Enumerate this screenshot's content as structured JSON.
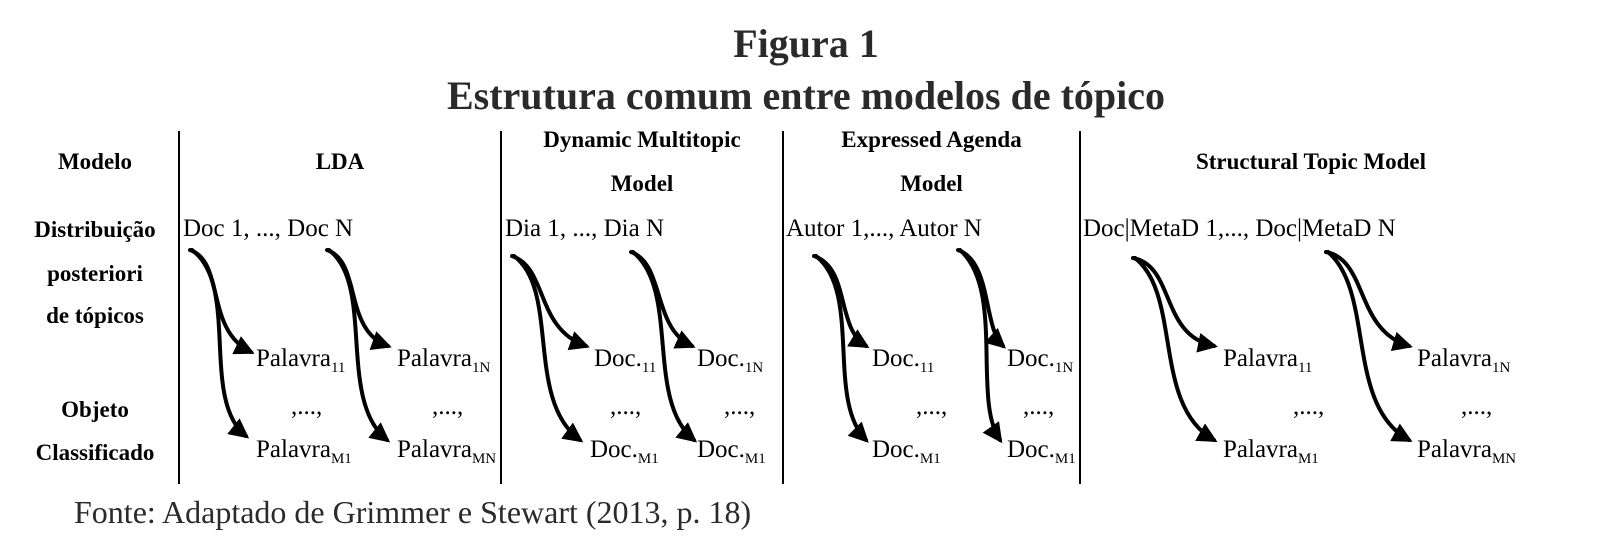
{
  "figure": {
    "number": "Figura 1",
    "title": "Estrutura comum entre modelos de tópico",
    "source": "Fonte: Adaptado de Grimmer e Stewart (2013, p. 18)"
  },
  "row_labels": {
    "model": "Modelo",
    "dist_1": "Distribuição",
    "dist_2": "posteriori",
    "dist_3": "de tópicos",
    "obj_1": "Objeto",
    "obj_2": "Classificado"
  },
  "columns": [
    {
      "model_line1": "LDA",
      "model_line2": "",
      "distribution": "Doc 1, ..., Doc N",
      "left_top": {
        "base": "Palavra",
        "sub": "11"
      },
      "left_dots": ",...,",
      "left_bottom": {
        "base": "Palavra",
        "sub": "M1"
      },
      "right_top": {
        "base": "Palavra",
        "sub": "1N"
      },
      "right_dots": ",...,",
      "right_bottom": {
        "base": "Palavra",
        "sub": "MN"
      }
    },
    {
      "model_line1": "Dynamic Multitopic",
      "model_line2": "Model",
      "distribution": "Dia 1, ..., Dia N",
      "left_top": {
        "base": "Doc.",
        "sub": "11"
      },
      "left_dots": ",...,",
      "left_bottom": {
        "base": "Doc.",
        "sub": "M1"
      },
      "right_top": {
        "base": "Doc.",
        "sub": "1N"
      },
      "right_dots": ",...,",
      "right_bottom": {
        "base": "Doc.",
        "sub": "M1"
      }
    },
    {
      "model_line1": "Expressed Agenda",
      "model_line2": "Model",
      "distribution": "Autor 1,..., Autor N",
      "left_top": {
        "base": "Doc.",
        "sub": "11"
      },
      "left_dots": ",...,",
      "left_bottom": {
        "base": "Doc.",
        "sub": "M1"
      },
      "right_top": {
        "base": "Doc.",
        "sub": "1N"
      },
      "right_dots": ",...,",
      "right_bottom": {
        "base": "Doc.",
        "sub": "M1"
      }
    },
    {
      "model_line1": "Structural Topic Model",
      "model_line2": "",
      "distribution": "Doc|MetaD 1,..., Doc|MetaD N",
      "left_top": {
        "base": "Palavra",
        "sub": "11"
      },
      "left_dots": ",...,",
      "left_bottom": {
        "base": "Palavra",
        "sub": "M1"
      },
      "right_top": {
        "base": "Palavra",
        "sub": "1N"
      },
      "right_dots": ",...,",
      "right_bottom": {
        "base": "Palavra",
        "sub": "MN"
      }
    }
  ]
}
